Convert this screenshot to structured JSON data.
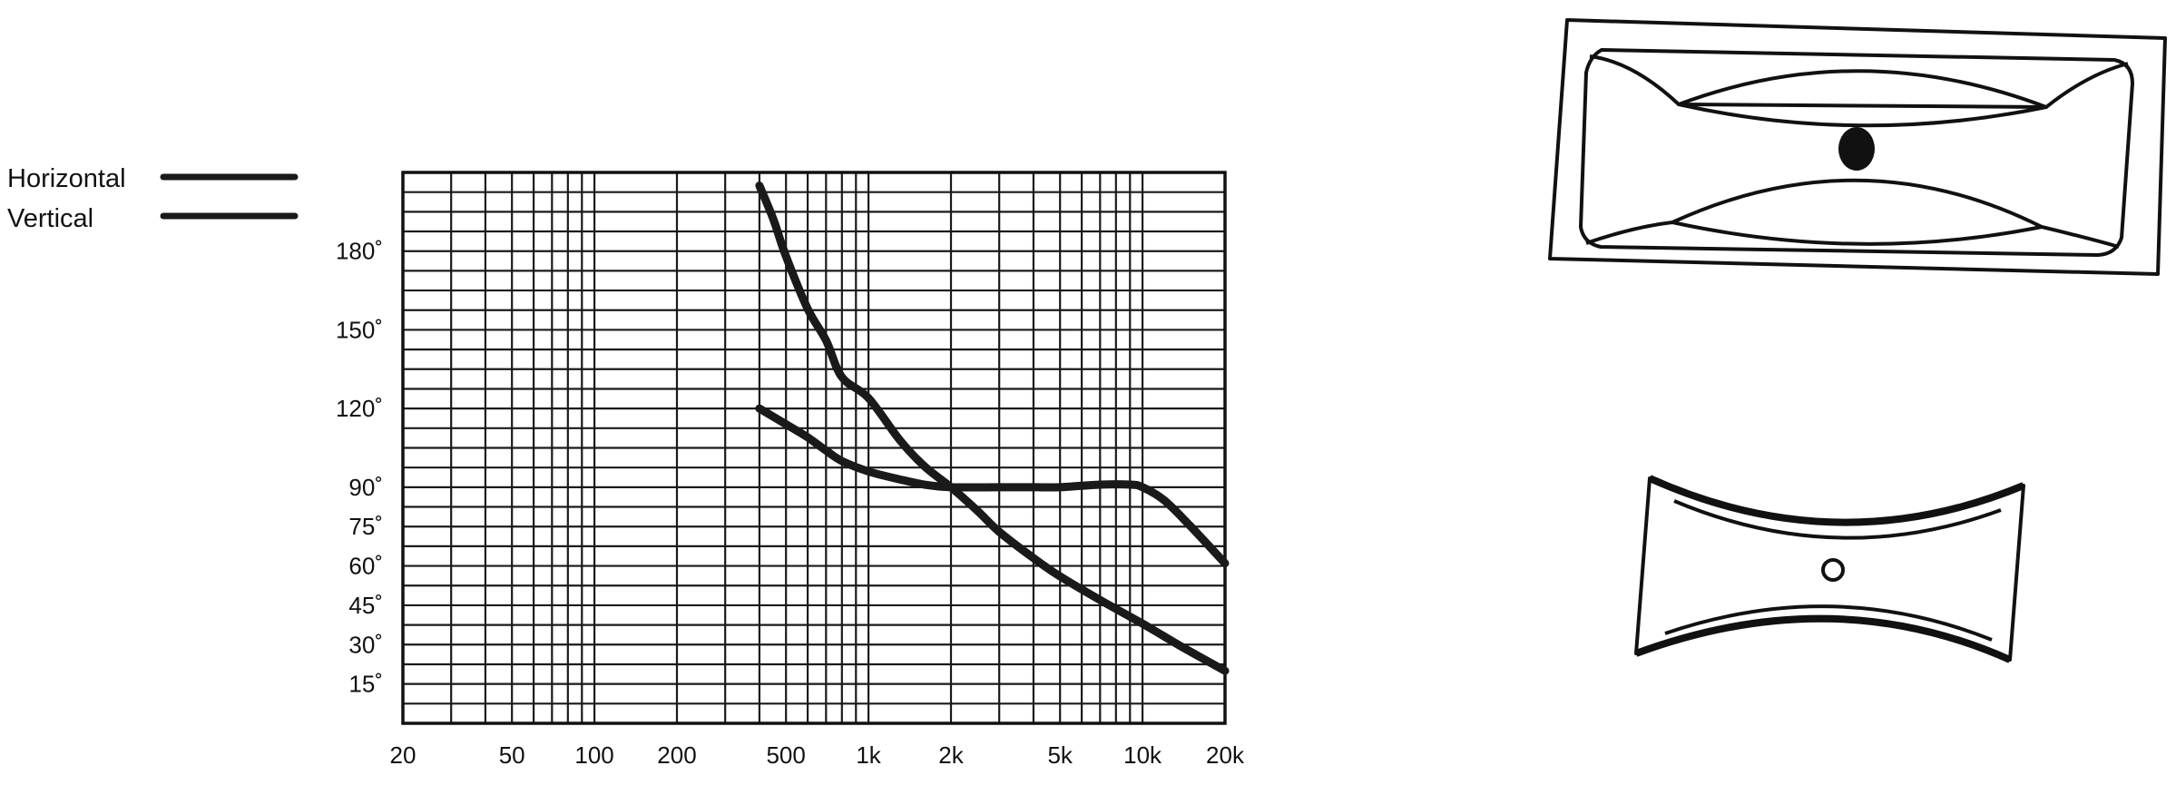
{
  "chart_data": {
    "type": "line",
    "xscale": "log",
    "xlim": [
      20,
      20000
    ],
    "ylim": [
      0,
      210
    ],
    "x_tick_labels": [
      {
        "value": 20,
        "label": "20"
      },
      {
        "value": 50,
        "label": "50"
      },
      {
        "value": 100,
        "label": "100"
      },
      {
        "value": 200,
        "label": "200"
      },
      {
        "value": 500,
        "label": "500"
      },
      {
        "value": 1000,
        "label": "1k"
      },
      {
        "value": 2000,
        "label": "2k"
      },
      {
        "value": 5000,
        "label": "5k"
      },
      {
        "value": 10000,
        "label": "10k"
      },
      {
        "value": 20000,
        "label": "20k"
      }
    ],
    "y_tick_labels": [
      {
        "value": 15,
        "label": "15˚"
      },
      {
        "value": 30,
        "label": "30˚"
      },
      {
        "value": 45,
        "label": "45˚"
      },
      {
        "value": 60,
        "label": "60˚"
      },
      {
        "value": 75,
        "label": "75˚"
      },
      {
        "value": 90,
        "label": "90˚"
      },
      {
        "value": 120,
        "label": "120˚"
      },
      {
        "value": 150,
        "label": "150˚"
      },
      {
        "value": 180,
        "label": "180˚"
      }
    ],
    "grid": true,
    "legend_placement": "top-left, outside plot",
    "series": [
      {
        "name": "Horizontal",
        "x": [
          400,
          500,
          600,
          700,
          800,
          1000,
          1300,
          1600,
          2000,
          3000,
          4000,
          5000,
          7000,
          9000,
          10000,
          12000,
          15000,
          20000
        ],
        "y": [
          120,
          114,
          109,
          104,
          100,
          96,
          93,
          91,
          90,
          90,
          90,
          90,
          91,
          91,
          90,
          85,
          75,
          61
        ]
      },
      {
        "name": "Vertical",
        "x": [
          400,
          450,
          500,
          600,
          700,
          800,
          1000,
          1300,
          1600,
          2000,
          2500,
          3000,
          4000,
          5000,
          7000,
          10000,
          14000,
          20000
        ],
        "y": [
          205,
          192,
          178,
          158,
          146,
          132,
          124,
          108,
          98,
          90,
          81,
          73,
          63,
          56,
          47,
          38,
          29,
          20
        ]
      }
    ]
  },
  "colors": {
    "ink": "#1a1a1a",
    "background": "#ffffff",
    "horn_dot_filled": "#111111",
    "horn_dot_open": "#ffffff"
  },
  "horn_illustrations": [
    {
      "name": "rectangular-horn-front-view",
      "dot": "filled"
    },
    {
      "name": "curved-horn-side-view",
      "dot": "open"
    }
  ]
}
